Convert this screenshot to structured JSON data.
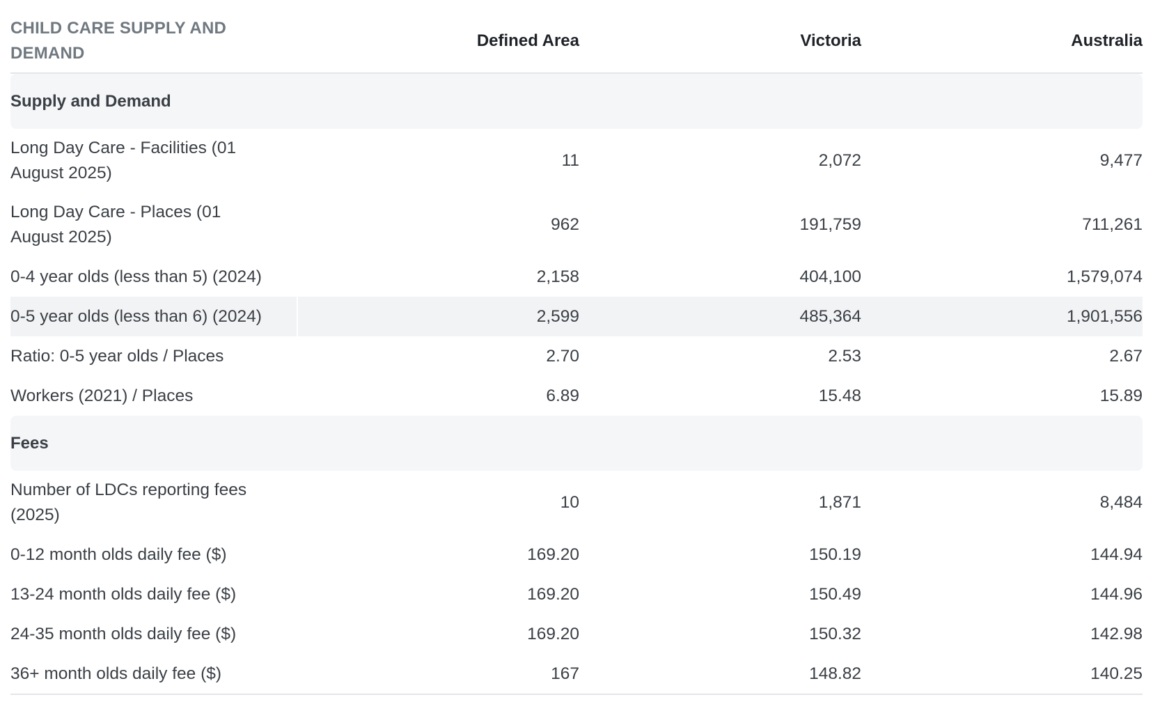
{
  "table": {
    "header": {
      "title": "CHILD CARE SUPPLY AND DEMAND",
      "columns": [
        "Defined Area",
        "Victoria",
        "Australia"
      ]
    },
    "sections": [
      {
        "name": "Supply and Demand",
        "rows": [
          {
            "label": "Long Day Care - Facilities (01 August 2025)",
            "values": [
              "11",
              "2,072",
              "9,477"
            ]
          },
          {
            "label": "Long Day Care - Places (01 August 2025)",
            "values": [
              "962",
              "191,759",
              "711,261"
            ]
          },
          {
            "label": "0-4 year olds (less than 5) (2024)",
            "values": [
              "2,158",
              "404,100",
              "1,579,074"
            ]
          },
          {
            "label": "0-5 year olds (less than 6) (2024)",
            "values": [
              "2,599",
              "485,364",
              "1,901,556"
            ]
          },
          {
            "label": "Ratio: 0-5 year olds / Places",
            "values": [
              "2.70",
              "2.53",
              "2.67"
            ]
          },
          {
            "label": "Workers (2021) / Places",
            "values": [
              "6.89",
              "15.48",
              "15.89"
            ]
          }
        ]
      },
      {
        "name": "Fees",
        "rows": [
          {
            "label": "Number of LDCs reporting fees (2025)",
            "values": [
              "10",
              "1,871",
              "8,484"
            ]
          },
          {
            "label": "0-12 month olds daily fee ($)",
            "values": [
              "169.20",
              "150.19",
              "144.94"
            ]
          },
          {
            "label": "13-24 month olds daily fee ($)",
            "values": [
              "169.20",
              "150.49",
              "144.96"
            ]
          },
          {
            "label": "24-35 month olds daily fee ($)",
            "values": [
              "169.20",
              "150.32",
              "142.98"
            ]
          },
          {
            "label": "36+ month olds daily fee ($)",
            "values": [
              "167",
              "148.82",
              "140.25"
            ]
          }
        ]
      }
    ]
  }
}
